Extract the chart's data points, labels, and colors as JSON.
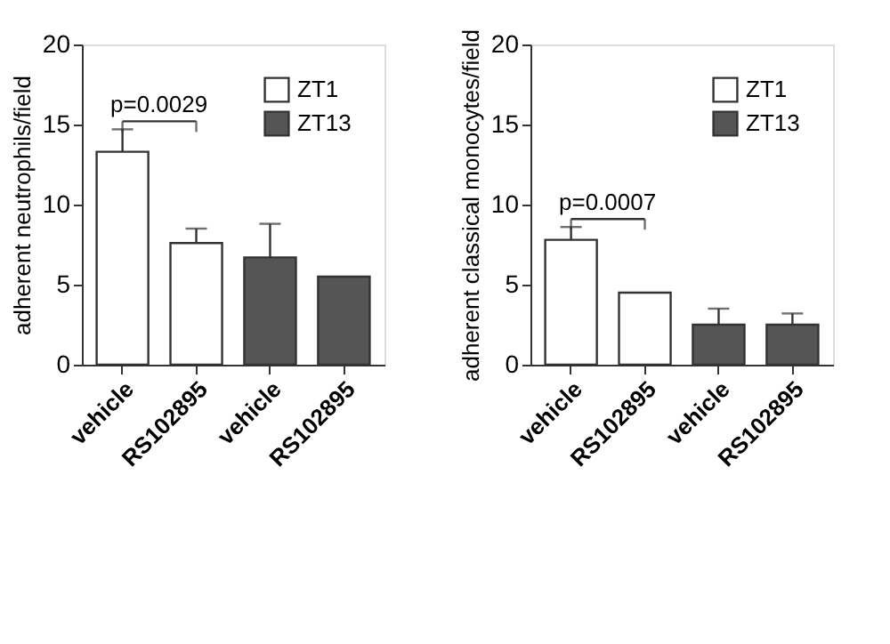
{
  "chart_data": [
    {
      "type": "bar",
      "ylabel": "adherent neutrophils/field",
      "categories": [
        "vehicle",
        "RS102895",
        "vehicle",
        "RS102895"
      ],
      "ylim": [
        0,
        20
      ],
      "yticks": [
        0,
        5,
        10,
        15,
        20
      ],
      "legend": "top right",
      "grid": false,
      "annotations": [
        "p=0.0029"
      ],
      "series": [
        {
          "name": "ZT1",
          "color": "#ffffff",
          "values": [
            13.3,
            7.6,
            null,
            null
          ],
          "errors": [
            [
              13.3,
              14.7
            ],
            [
              7.6,
              8.5
            ],
            null,
            null
          ]
        },
        {
          "name": "ZT13",
          "color": "#555555",
          "values": [
            null,
            null,
            6.7,
            5.5
          ],
          "errors": [
            null,
            null,
            [
              6.7,
              8.8
            ],
            null
          ]
        }
      ]
    },
    {
      "type": "bar",
      "ylabel": "adherent classical monocytes/field",
      "categories": [
        "vehicle",
        "RS102895",
        "vehicle",
        "RS102895"
      ],
      "ylim": [
        0,
        20
      ],
      "yticks": [
        0,
        5,
        10,
        15,
        20
      ],
      "legend": "top right",
      "grid": false,
      "annotations": [
        "p=0.0007"
      ],
      "series": [
        {
          "name": "ZT1",
          "color": "#ffffff",
          "values": [
            7.8,
            4.5,
            null,
            null
          ],
          "errors": [
            [
              7.8,
              8.6
            ],
            null,
            null,
            null
          ]
        },
        {
          "name": "ZT13",
          "color": "#555555",
          "values": [
            null,
            null,
            2.5,
            2.5
          ],
          "errors": [
            null,
            null,
            [
              2.5,
              3.5
            ],
            [
              2.5,
              3.2
            ]
          ]
        }
      ]
    }
  ]
}
